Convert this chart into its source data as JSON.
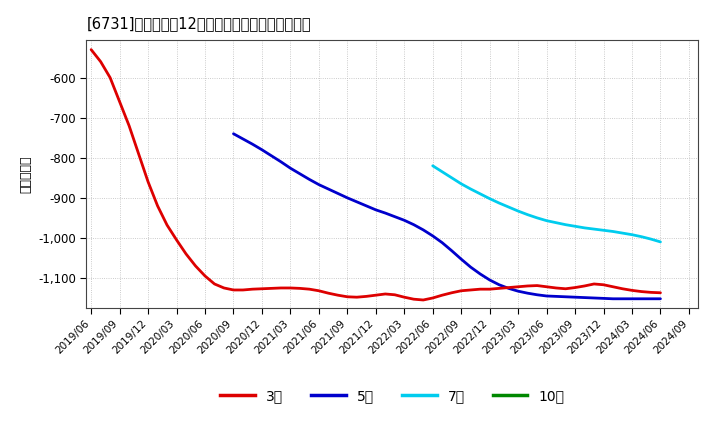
{
  "title": "[6731]　経常利益12か月移動合計の平均値の推移",
  "ylabel": "（百万円）",
  "background_color": "#ffffff",
  "plot_background_color": "#ffffff",
  "grid_color": "#bbbbbb",
  "ylim": [
    -1175,
    -505
  ],
  "yticks": [
    -600,
    -700,
    -800,
    -900,
    -1000,
    -1100
  ],
  "series": {
    "3year": {
      "color": "#dd0000",
      "label": "3年",
      "x": [
        0,
        1,
        2,
        3,
        4,
        5,
        6,
        7,
        8,
        9,
        10,
        11,
        12,
        13,
        14,
        15,
        16,
        17,
        18,
        19,
        20,
        21,
        22,
        23,
        24,
        25,
        26,
        27,
        28,
        29,
        30,
        31,
        32,
        33,
        34,
        35,
        36,
        37,
        38,
        39,
        40,
        41,
        42,
        43,
        44,
        45,
        46,
        47,
        48,
        49,
        50,
        51,
        52,
        53,
        54,
        55,
        56,
        57,
        58,
        59,
        60
      ],
      "y": [
        -530,
        -560,
        -600,
        -660,
        -720,
        -790,
        -860,
        -920,
        -968,
        -1005,
        -1040,
        -1070,
        -1095,
        -1115,
        -1125,
        -1130,
        -1130,
        -1128,
        -1127,
        -1126,
        -1125,
        -1125,
        -1126,
        -1128,
        -1132,
        -1138,
        -1143,
        -1147,
        -1148,
        -1146,
        -1143,
        -1140,
        -1142,
        -1148,
        -1153,
        -1155,
        -1150,
        -1143,
        -1137,
        -1132,
        -1130,
        -1128,
        -1128,
        -1126,
        -1124,
        -1122,
        -1120,
        -1119,
        -1122,
        -1125,
        -1127,
        -1124,
        -1120,
        -1115,
        -1117,
        -1122,
        -1127,
        -1131,
        -1134,
        -1136,
        -1137
      ]
    },
    "5year": {
      "color": "#0000cc",
      "label": "5年",
      "x": [
        15,
        16,
        17,
        18,
        19,
        20,
        21,
        22,
        23,
        24,
        25,
        26,
        27,
        28,
        29,
        30,
        31,
        32,
        33,
        34,
        35,
        36,
        37,
        38,
        39,
        40,
        41,
        42,
        43,
        44,
        45,
        46,
        47,
        48,
        49,
        50,
        51,
        52,
        53,
        54,
        55,
        56,
        57,
        58,
        59,
        60
      ],
      "y": [
        -740,
        -753,
        -766,
        -780,
        -795,
        -810,
        -826,
        -840,
        -854,
        -867,
        -878,
        -889,
        -900,
        -910,
        -920,
        -930,
        -938,
        -947,
        -956,
        -967,
        -980,
        -995,
        -1012,
        -1032,
        -1053,
        -1073,
        -1090,
        -1105,
        -1117,
        -1126,
        -1133,
        -1138,
        -1142,
        -1145,
        -1146,
        -1147,
        -1148,
        -1149,
        -1150,
        -1151,
        -1152,
        -1152,
        -1152,
        -1152,
        -1152,
        -1152
      ]
    },
    "7year": {
      "color": "#00ccee",
      "label": "7年",
      "x": [
        36,
        37,
        38,
        39,
        40,
        41,
        42,
        43,
        44,
        45,
        46,
        47,
        48,
        49,
        50,
        51,
        52,
        53,
        54,
        55,
        56,
        57,
        58,
        59,
        60
      ],
      "y": [
        -820,
        -835,
        -850,
        -865,
        -878,
        -890,
        -902,
        -913,
        -923,
        -933,
        -942,
        -950,
        -957,
        -962,
        -967,
        -971,
        -975,
        -978,
        -981,
        -984,
        -988,
        -992,
        -997,
        -1003,
        -1010
      ]
    },
    "10year": {
      "color": "#008800",
      "label": "10年",
      "x": [],
      "y": []
    }
  },
  "xtick_labels": [
    "2019/06",
    "2019/09",
    "2019/12",
    "2020/03",
    "2020/06",
    "2020/09",
    "2020/12",
    "2021/03",
    "2021/06",
    "2021/09",
    "2021/12",
    "2022/03",
    "2022/06",
    "2022/09",
    "2022/12",
    "2023/03",
    "2023/06",
    "2023/09",
    "2023/12",
    "2024/03",
    "2024/06",
    "2024/09"
  ],
  "xtick_positions": [
    0,
    3,
    6,
    9,
    12,
    15,
    18,
    21,
    24,
    27,
    30,
    33,
    36,
    39,
    42,
    45,
    48,
    51,
    54,
    57,
    60,
    63
  ]
}
